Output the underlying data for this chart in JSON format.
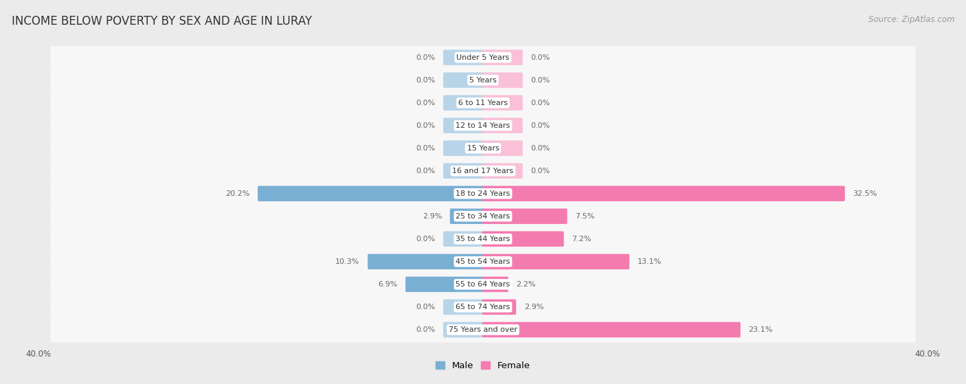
{
  "title": "INCOME BELOW POVERTY BY SEX AND AGE IN LURAY",
  "source": "Source: ZipAtlas.com",
  "categories": [
    "Under 5 Years",
    "5 Years",
    "6 to 11 Years",
    "12 to 14 Years",
    "15 Years",
    "16 and 17 Years",
    "18 to 24 Years",
    "25 to 34 Years",
    "35 to 44 Years",
    "45 to 54 Years",
    "55 to 64 Years",
    "65 to 74 Years",
    "75 Years and over"
  ],
  "male": [
    0.0,
    0.0,
    0.0,
    0.0,
    0.0,
    0.0,
    20.2,
    2.9,
    0.0,
    10.3,
    6.9,
    0.0,
    0.0
  ],
  "female": [
    0.0,
    0.0,
    0.0,
    0.0,
    0.0,
    0.0,
    32.5,
    7.5,
    7.2,
    13.1,
    2.2,
    2.9,
    23.1
  ],
  "male_color": "#7aafd4",
  "female_color": "#f47bb0",
  "male_color_light": "#b8d4e8",
  "female_color_light": "#f9c0d8",
  "bg_color": "#ebebeb",
  "row_bg_color": "#f7f7f7",
  "xlim": 40.0,
  "stub_size": 3.5,
  "title_fontsize": 12,
  "source_fontsize": 8.5,
  "label_fontsize": 8,
  "cat_fontsize": 8,
  "legend_fontsize": 9.5
}
